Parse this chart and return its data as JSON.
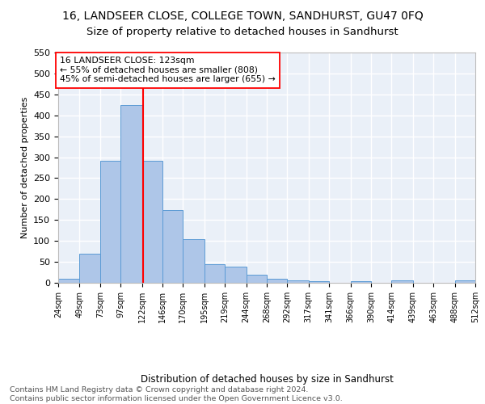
{
  "title": "16, LANDSEER CLOSE, COLLEGE TOWN, SANDHURST, GU47 0FQ",
  "subtitle": "Size of property relative to detached houses in Sandhurst",
  "xlabel": "Distribution of detached houses by size in Sandhurst",
  "ylabel": "Number of detached properties",
  "bar_edges": [
    24,
    49,
    73,
    97,
    122,
    146,
    170,
    195,
    219,
    244,
    268,
    292,
    317,
    341,
    366,
    390,
    414,
    439,
    463,
    488,
    512
  ],
  "bar_heights": [
    9,
    69,
    291,
    424,
    291,
    174,
    105,
    44,
    39,
    20,
    9,
    5,
    4,
    0,
    4,
    0,
    5,
    0,
    0,
    5
  ],
  "bar_color": "#aec6e8",
  "bar_edge_color": "#5b9bd5",
  "vline_x": 123,
  "vline_color": "red",
  "annotation_text": "16 LANDSEER CLOSE: 123sqm\n← 55% of detached houses are smaller (808)\n45% of semi-detached houses are larger (655) →",
  "annotation_box_color": "white",
  "annotation_box_edge_color": "red",
  "background_color": "#eaf0f8",
  "grid_color": "white",
  "tick_labels": [
    "24sqm",
    "49sqm",
    "73sqm",
    "97sqm",
    "122sqm",
    "146sqm",
    "170sqm",
    "195sqm",
    "219sqm",
    "244sqm",
    "268sqm",
    "292sqm",
    "317sqm",
    "341sqm",
    "366sqm",
    "390sqm",
    "414sqm",
    "439sqm",
    "463sqm",
    "488sqm",
    "512sqm"
  ],
  "ylim": [
    0,
    550
  ],
  "yticks": [
    0,
    50,
    100,
    150,
    200,
    250,
    300,
    350,
    400,
    450,
    500,
    550
  ],
  "footer_text": "Contains HM Land Registry data © Crown copyright and database right 2024.\nContains public sector information licensed under the Open Government Licence v3.0.",
  "title_fontsize": 10,
  "subtitle_fontsize": 9.5,
  "xlabel_fontsize": 8.5,
  "ylabel_fontsize": 8,
  "footer_fontsize": 6.8,
  "annot_fontsize": 7.8,
  "tick_fontsize": 7
}
